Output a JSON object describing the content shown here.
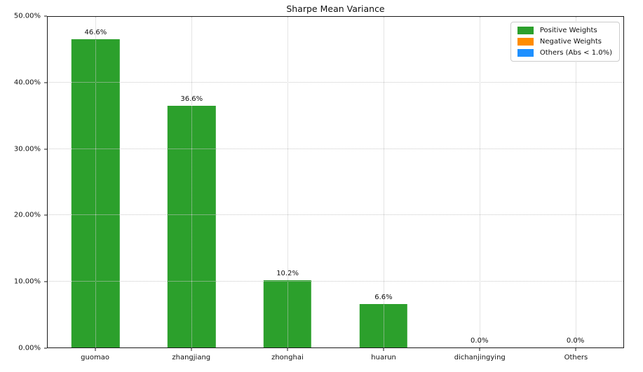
{
  "figure": {
    "background": "#ffffff"
  },
  "chart_data": {
    "type": "bar",
    "title": "Sharpe Mean Variance",
    "categories": [
      "guomao",
      "zhangjiang",
      "zhonghai",
      "huarun",
      "dichanjingying",
      "Others"
    ],
    "values": [
      46.6,
      36.6,
      10.2,
      6.6,
      0.0,
      0.0
    ],
    "bar_labels": [
      "46.6%",
      "36.6%",
      "10.2%",
      "6.6%",
      "0.0%",
      "0.0%"
    ],
    "bar_color": "#2ca02c",
    "xlabel": "",
    "ylabel": "",
    "ylim": [
      0,
      50
    ],
    "y_ticks": [
      {
        "value": 0,
        "label": "0.00%"
      },
      {
        "value": 10,
        "label": "10.00%"
      },
      {
        "value": 20,
        "label": "20.00%"
      },
      {
        "value": 30,
        "label": "30.00%"
      },
      {
        "value": 40,
        "label": "40.00%"
      },
      {
        "value": 50,
        "label": "50.00%"
      }
    ],
    "grid": true,
    "grid_style": "dotted",
    "legend_position": "upper right",
    "legend_items": [
      {
        "label": "Positive Weights",
        "color": "#2ca02c"
      },
      {
        "label": "Negative Weights",
        "color": "#ff8c00"
      },
      {
        "label": "Others (Abs < 1.0%)",
        "color": "#1e90ff"
      }
    ]
  }
}
